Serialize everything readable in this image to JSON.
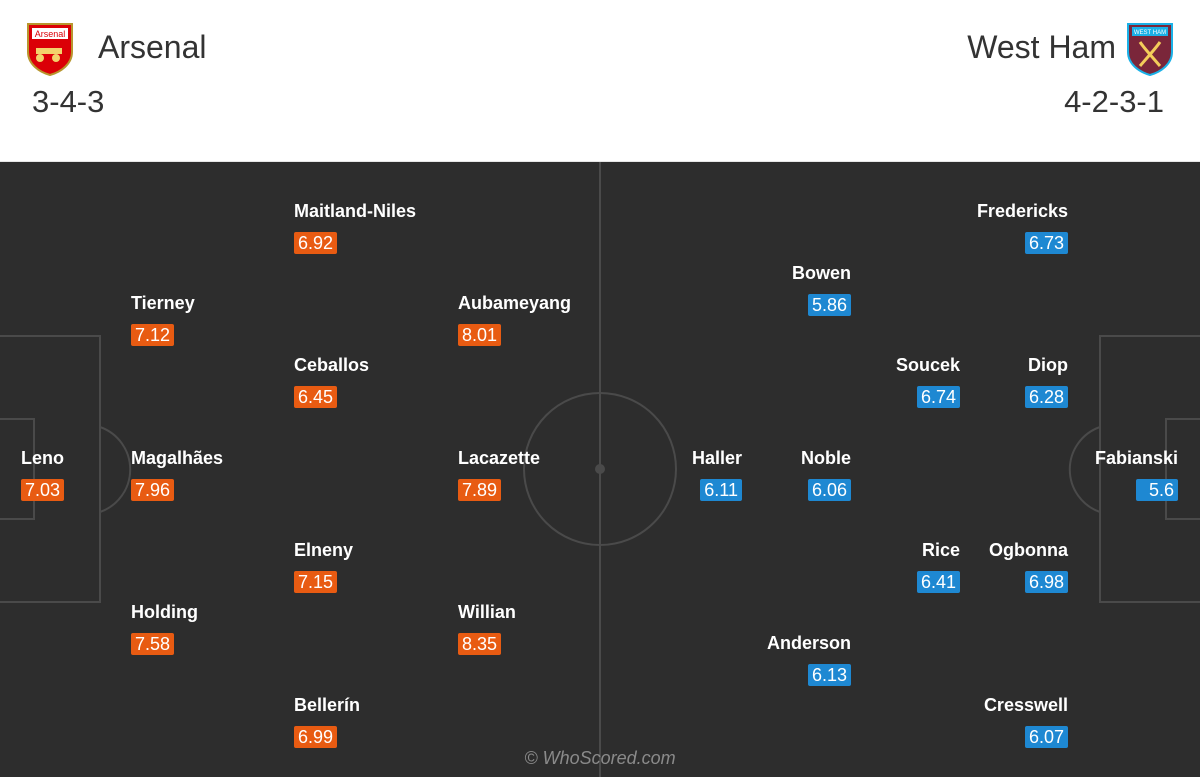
{
  "header": {
    "home": {
      "name": "Arsenal",
      "formation": "3-4-3",
      "crest_text": "Arsenal",
      "crest_icon": "arsenal-crest-icon"
    },
    "away": {
      "name": "West Ham",
      "formation": "4-2-3-1",
      "crest_text": "WEST HAM",
      "crest_icon": "west-ham-crest-icon"
    }
  },
  "colors": {
    "pitch": "#2d2d2d",
    "home_rating": "#e85b12",
    "away_rating": "#1e88d2",
    "lines": "#4a4a4a"
  },
  "home_players": [
    {
      "name": "Maitland-Niles",
      "rating": "6.92"
    },
    {
      "name": "Tierney",
      "rating": "7.12"
    },
    {
      "name": "Aubameyang",
      "rating": "8.01"
    },
    {
      "name": "Ceballos",
      "rating": "6.45"
    },
    {
      "name": "Leno",
      "rating": "7.03"
    },
    {
      "name": "Magalhães",
      "rating": "7.96"
    },
    {
      "name": "Lacazette",
      "rating": "7.89"
    },
    {
      "name": "Elneny",
      "rating": "7.15"
    },
    {
      "name": "Holding",
      "rating": "7.58"
    },
    {
      "name": "Willian",
      "rating": "8.35"
    },
    {
      "name": "Bellerín",
      "rating": "6.99"
    }
  ],
  "away_players": [
    {
      "name": "Fredericks",
      "rating": "6.73"
    },
    {
      "name": "Bowen",
      "rating": "5.86"
    },
    {
      "name": "Soucek",
      "rating": "6.74"
    },
    {
      "name": "Diop",
      "rating": "6.28"
    },
    {
      "name": "Haller",
      "rating": "6.11"
    },
    {
      "name": "Noble",
      "rating": "6.06"
    },
    {
      "name": "Fabianski",
      "rating": "5.6"
    },
    {
      "name": "Rice",
      "rating": "6.41"
    },
    {
      "name": "Ogbonna",
      "rating": "6.98"
    },
    {
      "name": "Anderson",
      "rating": "6.13"
    },
    {
      "name": "Cresswell",
      "rating": "6.07"
    }
  ],
  "watermark": "© WhoScored.com"
}
